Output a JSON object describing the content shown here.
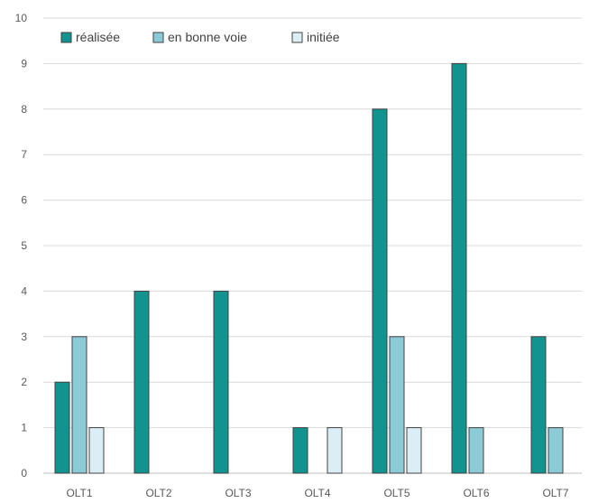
{
  "chart_data": {
    "type": "bar",
    "title": "",
    "xlabel": "",
    "ylabel": "",
    "categories": [
      "OLT1",
      "OLT2",
      "OLT3",
      "OLT4",
      "OLT5",
      "OLT6",
      "OLT7"
    ],
    "series": [
      {
        "name": "réalisée",
        "color": "#12938f",
        "values": [
          2,
          4,
          4,
          1,
          8,
          9,
          3
        ]
      },
      {
        "name": "en bonne voie",
        "color": "#8ccad8",
        "values": [
          3,
          0,
          0,
          0,
          3,
          1,
          1
        ]
      },
      {
        "name": "initiée",
        "color": "#dbeef5",
        "values": [
          1,
          0,
          0,
          1,
          1,
          0,
          0
        ]
      }
    ],
    "ylim": [
      0,
      10
    ],
    "yticks": [
      "0",
      "1",
      "2",
      "3",
      "4",
      "5",
      "6",
      "7",
      "8",
      "9",
      "10"
    ],
    "grid": true,
    "legend_position": "top-left"
  }
}
